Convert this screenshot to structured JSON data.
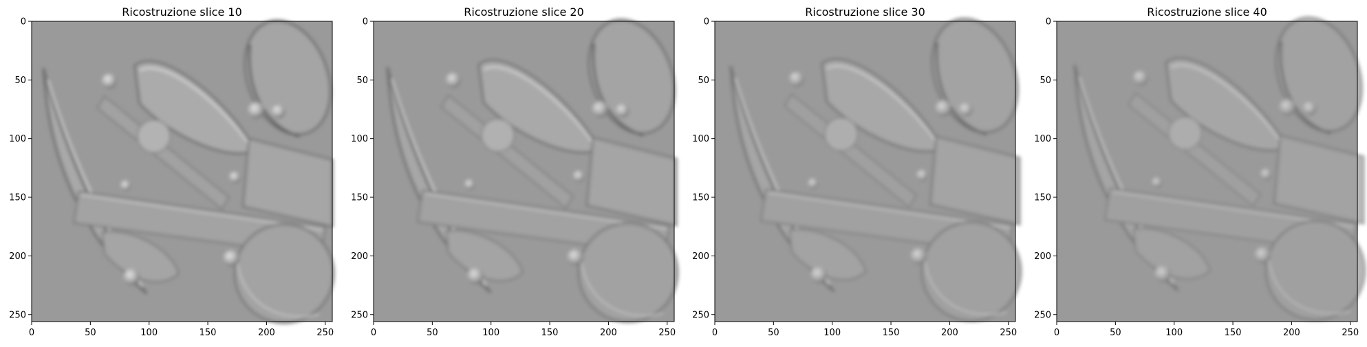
{
  "figure": {
    "panels": [
      {
        "title": "Ricostruzione slice 10",
        "slice": 10
      },
      {
        "title": "Ricostruzione slice 20",
        "slice": 20
      },
      {
        "title": "Ricostruzione slice 30",
        "slice": 30
      },
      {
        "title": "Ricostruzione slice 40",
        "slice": 40
      }
    ],
    "x_ticks": [
      "0",
      "50",
      "100",
      "150",
      "200",
      "250"
    ],
    "y_ticks": [
      "0",
      "50",
      "100",
      "150",
      "200",
      "250"
    ],
    "x_range": [
      0,
      256
    ],
    "y_range": [
      0,
      256
    ],
    "colormap": "gray"
  }
}
